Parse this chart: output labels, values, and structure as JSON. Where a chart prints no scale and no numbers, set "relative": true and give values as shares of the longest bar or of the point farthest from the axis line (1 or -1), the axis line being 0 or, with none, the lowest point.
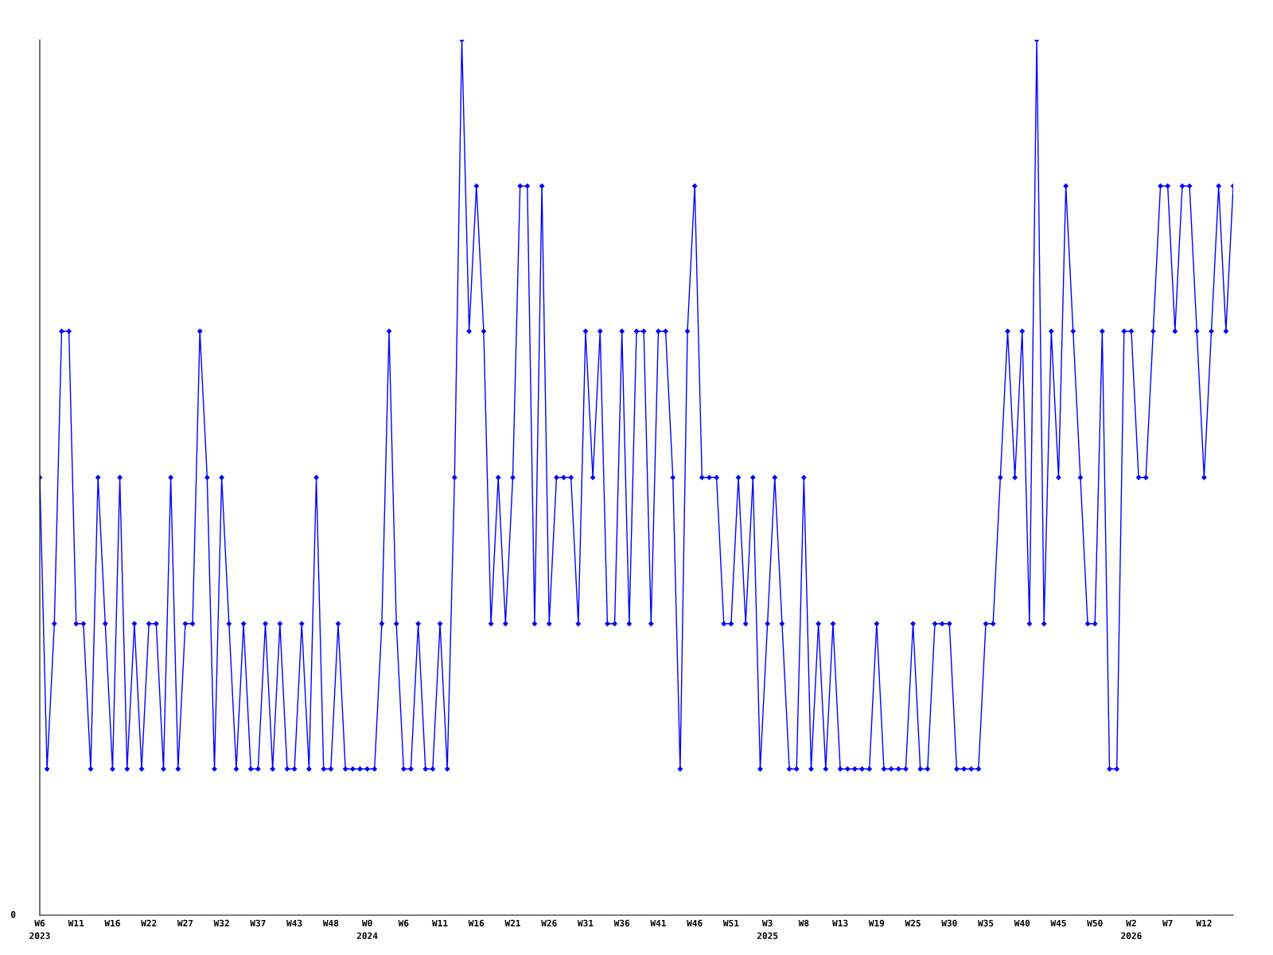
{
  "chart_data": {
    "type": "line",
    "relative": true,
    "marker": "diamond",
    "line_style": "solid",
    "grid": false,
    "legend": false,
    "categories": [
      "W6\n2023",
      null,
      null,
      null,
      null,
      "W11",
      null,
      null,
      null,
      null,
      "W16",
      null,
      null,
      null,
      null,
      "W22",
      null,
      null,
      null,
      null,
      "W27",
      null,
      null,
      null,
      null,
      "W32",
      null,
      null,
      null,
      null,
      "W37",
      null,
      null,
      null,
      null,
      "W43",
      null,
      null,
      null,
      null,
      "W48",
      null,
      null,
      null,
      null,
      "W0\n2024",
      null,
      null,
      null,
      null,
      "W6",
      null,
      null,
      null,
      null,
      "W11",
      null,
      null,
      null,
      null,
      "W16",
      null,
      null,
      null,
      null,
      "W21",
      null,
      null,
      null,
      null,
      "W26",
      null,
      null,
      null,
      null,
      "W31",
      null,
      null,
      null,
      null,
      "W36",
      null,
      null,
      null,
      null,
      "W41",
      null,
      null,
      null,
      null,
      "W46",
      null,
      null,
      null,
      null,
      "W51",
      null,
      null,
      null,
      null,
      "W3\n2025",
      null,
      null,
      null,
      null,
      "W8",
      null,
      null,
      null,
      null,
      "W13",
      null,
      null,
      null,
      null,
      "W19",
      null,
      null,
      null,
      null,
      "W25",
      null,
      null,
      null,
      null,
      "W30",
      null,
      null,
      null,
      null,
      "W35",
      null,
      null,
      null,
      null,
      "W40",
      null,
      null,
      null,
      null,
      "W45",
      null,
      null,
      null,
      null,
      "W50",
      null,
      null,
      null,
      null,
      "W2\n2026",
      null,
      null,
      null,
      null,
      "W7",
      null,
      null,
      null,
      null,
      "W12",
      null,
      null,
      null,
      null
    ],
    "series": [
      {
        "color": "#0000ff",
        "values": [
          0.5,
          0.167,
          0.333,
          0.667,
          0.667,
          0.333,
          0.333,
          0.167,
          0.5,
          0.333,
          0.167,
          0.5,
          0.167,
          0.333,
          0.167,
          0.333,
          0.333,
          0.167,
          0.5,
          0.167,
          0.333,
          0.333,
          0.667,
          0.5,
          0.167,
          0.5,
          0.333,
          0.167,
          0.333,
          0.167,
          0.167,
          0.333,
          0.167,
          0.333,
          0.167,
          0.167,
          0.333,
          0.167,
          0.5,
          0.167,
          0.167,
          0.333,
          0.167,
          0.167,
          0.167,
          0.167,
          0.167,
          0.333,
          0.667,
          0.333,
          0.167,
          0.167,
          0.333,
          0.167,
          0.167,
          0.333,
          0.167,
          0.5,
          1,
          0.667,
          0.833,
          0.667,
          0.333,
          0.5,
          0.333,
          0.5,
          0.833,
          0.833,
          0.333,
          0.833,
          0.333,
          0.5,
          0.5,
          0.5,
          0.333,
          0.667,
          0.5,
          0.667,
          0.333,
          0.333,
          0.667,
          0.333,
          0.667,
          0.667,
          0.333,
          0.667,
          0.667,
          0.5,
          0.167,
          0.667,
          0.833,
          0.5,
          0.5,
          0.5,
          0.333,
          0.333,
          0.5,
          0.333,
          0.5,
          0.167,
          0.333,
          0.5,
          0.333,
          0.167,
          0.167,
          0.5,
          0.167,
          0.333,
          0.167,
          0.333,
          0.167,
          0.167,
          0.167,
          0.167,
          0.167,
          0.333,
          0.167,
          0.167,
          0.167,
          0.167,
          0.333,
          0.167,
          0.167,
          0.333,
          0.333,
          0.333,
          0.167,
          0.167,
          0.167,
          0.167,
          0.333,
          0.333,
          0.5,
          0.667,
          0.5,
          0.667,
          0.333,
          1,
          0.333,
          0.667,
          0.5,
          0.833,
          0.667,
          0.5,
          0.333,
          0.333,
          0.667,
          0.167,
          0.167,
          0.667,
          0.667,
          0.5,
          0.5,
          0.667,
          0.833,
          0.833,
          0.667,
          0.833,
          0.833,
          0.667,
          0.5,
          0.667,
          0.833,
          0.667,
          0.833
        ]
      }
    ],
    "annotations": [
      "0"
    ]
  }
}
